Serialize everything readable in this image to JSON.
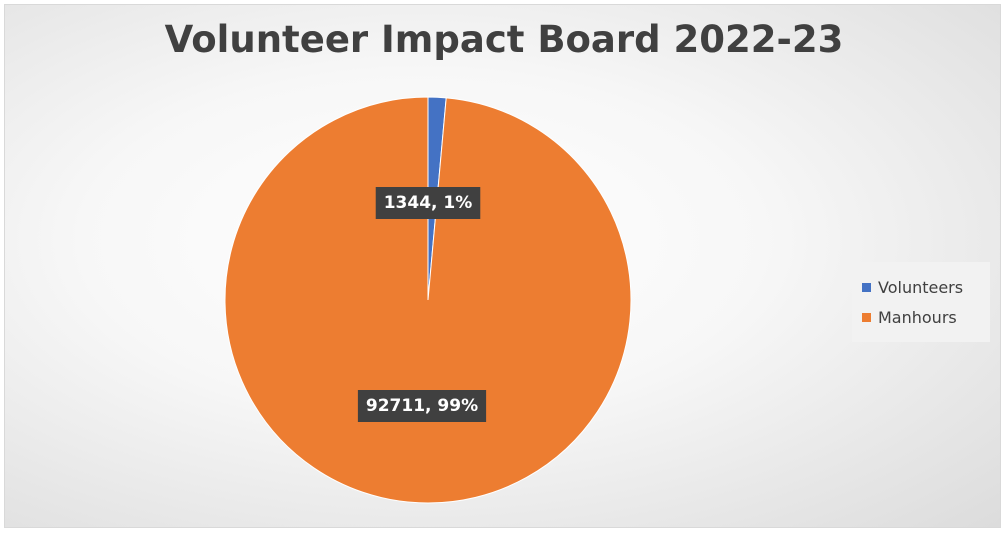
{
  "chart_data": {
    "type": "pie",
    "title": "Volunteer Impact Board 2022-23",
    "categories": [
      "Volunteers",
      "Manhours"
    ],
    "values": [
      1344,
      92711
    ],
    "labels": [
      "1344, 1%",
      "92711, 99%"
    ],
    "colors": [
      "#4472C4",
      "#ED7D31"
    ],
    "legend_position": "right",
    "start_angle": "top, clockwise"
  }
}
